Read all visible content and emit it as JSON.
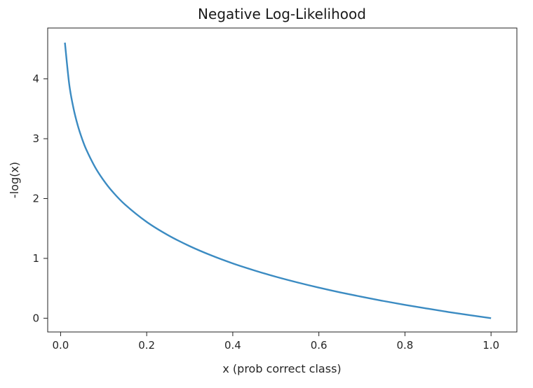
{
  "chart_data": {
    "type": "line",
    "title": "Negative Log-Likelihood",
    "xlabel": "x (prob correct class)",
    "ylabel": "-log(x)",
    "xlim": [
      -0.03,
      1.06
    ],
    "ylim": [
      -0.23,
      4.85
    ],
    "x_ticks": [
      "0.0",
      "0.2",
      "0.4",
      "0.6",
      "0.8",
      "1.0"
    ],
    "y_ticks": [
      "0",
      "1",
      "2",
      "3",
      "4"
    ],
    "grid": false,
    "legend": "none",
    "series": [
      {
        "color": "#3b8bc2",
        "x": [
          0.01,
          0.02,
          0.03,
          0.04,
          0.05,
          0.06,
          0.08,
          0.1,
          0.12,
          0.15,
          0.2,
          0.25,
          0.3,
          0.35,
          0.4,
          0.45,
          0.5,
          0.55,
          0.6,
          0.65,
          0.7,
          0.75,
          0.8,
          0.85,
          0.9,
          0.95,
          1.0
        ],
        "y": [
          4.605,
          3.912,
          3.507,
          3.219,
          2.996,
          2.813,
          2.526,
          2.303,
          2.12,
          1.897,
          1.609,
          1.386,
          1.204,
          1.05,
          0.916,
          0.799,
          0.693,
          0.598,
          0.511,
          0.431,
          0.357,
          0.288,
          0.223,
          0.163,
          0.105,
          0.051,
          0.0
        ]
      }
    ]
  }
}
